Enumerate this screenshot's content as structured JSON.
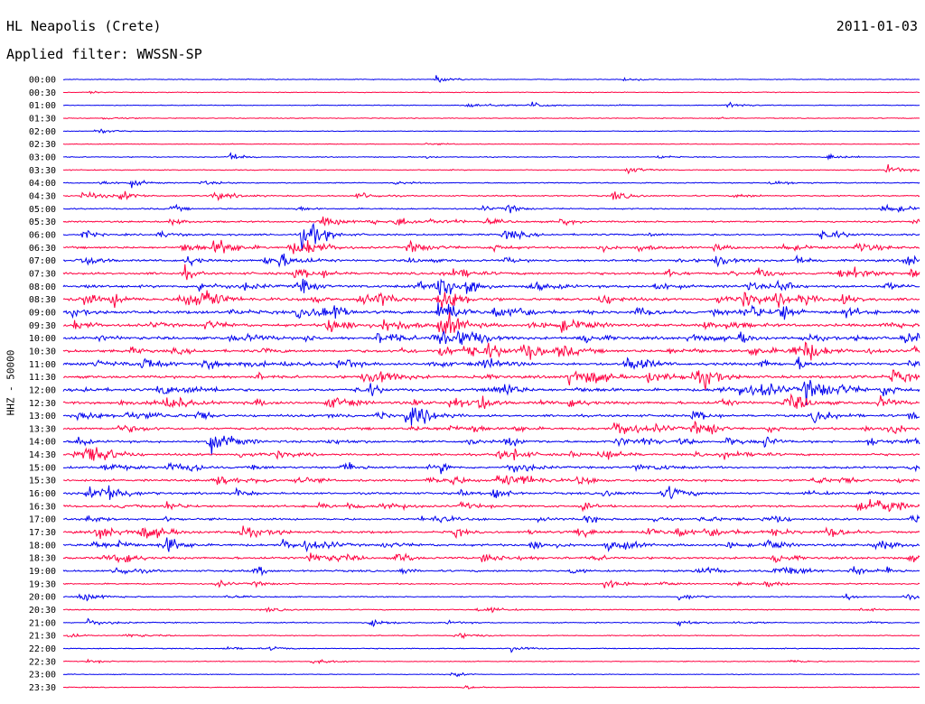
{
  "header": {
    "station": "HL Neapolis (Crete)",
    "filter": "Applied filter: WWSSN-SP",
    "date": "2011-01-03"
  },
  "axis": {
    "ylabel": "HHZ - 50000"
  },
  "colors": {
    "even": "#0000ee",
    "odd": "#ff0040",
    "text": "#000000"
  },
  "chart_data": {
    "type": "line",
    "title": "HL Neapolis (Crete)",
    "subtitle": "Applied filter: WWSSN-SP",
    "date": "2011-01-03",
    "ylabel": "HHZ - 50000",
    "xlabel": "",
    "grid": false,
    "legend": "none",
    "rows": [
      "00:00",
      "00:30",
      "01:00",
      "01:30",
      "02:00",
      "02:30",
      "03:00",
      "03:30",
      "04:00",
      "04:30",
      "05:00",
      "05:30",
      "06:00",
      "06:30",
      "07:00",
      "07:30",
      "08:00",
      "08:30",
      "09:00",
      "09:30",
      "10:00",
      "10:30",
      "11:00",
      "11:30",
      "12:00",
      "12:30",
      "13:00",
      "13:30",
      "14:00",
      "14:30",
      "15:00",
      "15:30",
      "16:00",
      "16:30",
      "17:00",
      "17:30",
      "18:00",
      "18:30",
      "19:00",
      "19:30",
      "20:00",
      "20:30",
      "21:00",
      "21:30",
      "22:00",
      "22:30",
      "23:00",
      "23:30"
    ],
    "row_colors": [
      "blue",
      "red"
    ],
    "activity": [
      0.05,
      0.05,
      0.06,
      0.05,
      0.04,
      0.04,
      0.08,
      0.1,
      0.14,
      0.2,
      0.22,
      0.3,
      0.35,
      0.42,
      0.45,
      0.5,
      0.6,
      0.6,
      0.65,
      0.62,
      0.6,
      0.62,
      0.6,
      0.58,
      0.62,
      0.6,
      0.5,
      0.55,
      0.5,
      0.45,
      0.45,
      0.45,
      0.45,
      0.45,
      0.42,
      0.5,
      0.48,
      0.45,
      0.38,
      0.2,
      0.15,
      0.15,
      0.14,
      0.1,
      0.08,
      0.06,
      0.05,
      0.05
    ],
    "events": [
      {
        "row": "00:00",
        "minute": 13.1,
        "amp": 0.9
      },
      {
        "row": "01:00",
        "minute": 14.2,
        "amp": 0.6
      },
      {
        "row": "01:00",
        "minute": 16.4,
        "amp": 0.8
      },
      {
        "row": "01:00",
        "minute": 23.3,
        "amp": 0.6
      },
      {
        "row": "01:30",
        "minute": 1.5,
        "amp": 0.4
      },
      {
        "row": "03:00",
        "minute": 5.8,
        "amp": 1.0
      },
      {
        "row": "03:00",
        "minute": 26.8,
        "amp": 0.7
      },
      {
        "row": "04:00",
        "minute": 2.4,
        "amp": 0.7
      },
      {
        "row": "05:30",
        "minute": 11.7,
        "amp": 1.2
      },
      {
        "row": "06:00",
        "minute": 15.5,
        "amp": 0.9
      },
      {
        "row": "08:00",
        "minute": 13.2,
        "amp": 3.5
      },
      {
        "row": "08:30",
        "minute": 13.2,
        "amp": 3.0
      },
      {
        "row": "09:00",
        "minute": 13.2,
        "amp": 2.5
      },
      {
        "row": "09:30",
        "minute": 13.2,
        "amp": 2.0
      },
      {
        "row": "10:00",
        "minute": 13.2,
        "amp": 1.8
      },
      {
        "row": "10:30",
        "minute": 13.2,
        "amp": 1.5
      },
      {
        "row": "15:00",
        "minute": 3.7,
        "amp": 1.2
      },
      {
        "row": "17:30",
        "minute": 21.5,
        "amp": 1.1
      },
      {
        "row": "18:00",
        "minute": 3.7,
        "amp": 1.3
      },
      {
        "row": "18:00",
        "minute": 24.7,
        "amp": 1.0
      },
      {
        "row": "20:00",
        "minute": 21.6,
        "amp": 0.9
      },
      {
        "row": "21:00",
        "minute": 10.8,
        "amp": 0.9
      },
      {
        "row": "21:00",
        "minute": 21.6,
        "amp": 0.8
      },
      {
        "row": "22:00",
        "minute": 15.7,
        "amp": 0.7
      },
      {
        "row": "22:30",
        "minute": 25.5,
        "amp": 0.4
      }
    ]
  }
}
